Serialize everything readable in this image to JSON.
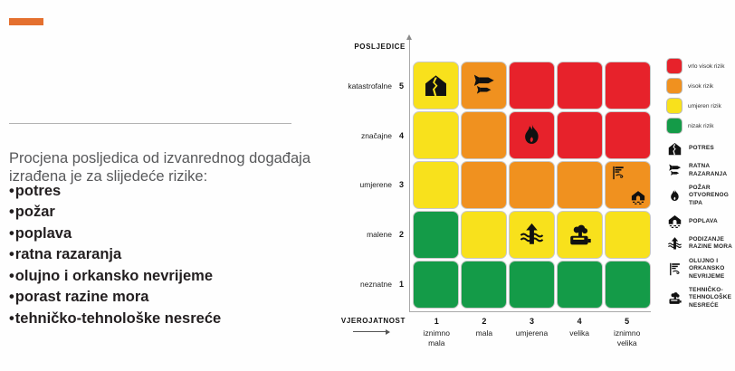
{
  "slide": {
    "bullet_char": "•",
    "intro": "Procjena posljedica od izvanrednog događaja izrađena je za slijedeće rizike:",
    "bullets": [
      "potres",
      "požar",
      "poplava",
      "ratna razaranja",
      "olujno i orkansko nevrijeme",
      "porast razine mora",
      "tehničko-tehnološke nesreće"
    ],
    "accent_dash_color": "#E4702F"
  },
  "colors": {
    "red": "#E7222B",
    "orange": "#F0911F",
    "yellow": "#F8E11C",
    "green": "#149B48"
  },
  "chart_data": {
    "type": "heatmap",
    "x_axis": {
      "label": "VJEROJATNOST",
      "ticks": [
        {
          "num": "1",
          "name": "iznimno mala"
        },
        {
          "num": "2",
          "name": "mala"
        },
        {
          "num": "3",
          "name": "umjerena"
        },
        {
          "num": "4",
          "name": "velika"
        },
        {
          "num": "5",
          "name": "iznimno velika"
        }
      ]
    },
    "y_axis": {
      "label": "POSLJEDICE",
      "ticks": [
        {
          "num": "5",
          "name": "katastrofalne"
        },
        {
          "num": "4",
          "name": "značajne"
        },
        {
          "num": "3",
          "name": "umjerene"
        },
        {
          "num": "2",
          "name": "malene"
        },
        {
          "num": "1",
          "name": "neznatne"
        }
      ]
    },
    "rows": [
      {
        "y": 5,
        "cells": [
          {
            "level": "yellow",
            "icons": [
              "potres"
            ]
          },
          {
            "level": "orange",
            "icons": [
              "ratna"
            ]
          },
          {
            "level": "red",
            "icons": []
          },
          {
            "level": "red",
            "icons": []
          },
          {
            "level": "red",
            "icons": []
          }
        ]
      },
      {
        "y": 4,
        "cells": [
          {
            "level": "yellow",
            "icons": []
          },
          {
            "level": "orange",
            "icons": []
          },
          {
            "level": "red",
            "icons": [
              "pozar"
            ]
          },
          {
            "level": "red",
            "icons": []
          },
          {
            "level": "red",
            "icons": []
          }
        ]
      },
      {
        "y": 3,
        "cells": [
          {
            "level": "yellow",
            "icons": []
          },
          {
            "level": "orange",
            "icons": []
          },
          {
            "level": "orange",
            "icons": []
          },
          {
            "level": "orange",
            "icons": []
          },
          {
            "level": "orange",
            "icons": [
              "olujno",
              "poplava"
            ]
          }
        ]
      },
      {
        "y": 2,
        "cells": [
          {
            "level": "green",
            "icons": []
          },
          {
            "level": "yellow",
            "icons": []
          },
          {
            "level": "yellow",
            "icons": [
              "more"
            ]
          },
          {
            "level": "yellow",
            "icons": [
              "tehnicko"
            ]
          },
          {
            "level": "yellow",
            "icons": []
          }
        ]
      },
      {
        "y": 1,
        "cells": [
          {
            "level": "green",
            "icons": []
          },
          {
            "level": "green",
            "icons": []
          },
          {
            "level": "green",
            "icons": []
          },
          {
            "level": "green",
            "icons": []
          },
          {
            "level": "green",
            "icons": []
          }
        ]
      }
    ]
  },
  "legend": {
    "risk_levels": [
      {
        "color": "red",
        "label": "vrlo visok rizik"
      },
      {
        "color": "orange",
        "label": "visok rizik"
      },
      {
        "color": "yellow",
        "label": "umjeren rizik"
      },
      {
        "color": "green",
        "label": "nizak rizik"
      }
    ],
    "hazards": [
      {
        "icon": "potres",
        "label": "POTRES"
      },
      {
        "icon": "ratna",
        "label": "RATNA RAZARANJA"
      },
      {
        "icon": "pozar",
        "label": "POŽAR OTVORENOG TIPA"
      },
      {
        "icon": "poplava",
        "label": "POPLAVA"
      },
      {
        "icon": "more",
        "label": "PODIZANJE RAZINE MORA"
      },
      {
        "icon": "olujno",
        "label": "OLUJNO I ORKANSKO NEVRIJEME"
      },
      {
        "icon": "tehnicko",
        "label": "TEHNIČKO-TEHNOLOŠKE NESREĆE"
      }
    ]
  }
}
